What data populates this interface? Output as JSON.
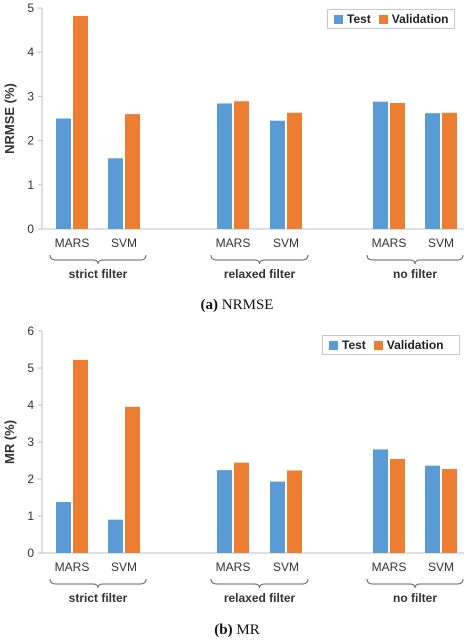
{
  "colors": {
    "test": "#5b9bd5",
    "validation": "#ed7d31"
  },
  "charts": [
    {
      "caption_prefix": "(a)",
      "caption_text": "NRMSE",
      "chart_data": {
        "type": "bar",
        "title": "",
        "xlabel": "",
        "ylabel": "NRMSE (%)",
        "ylim": [
          0,
          5
        ],
        "yticks": [
          "0",
          "1",
          "2",
          "3",
          "4",
          "5"
        ],
        "grid": false,
        "legend_placement": "top-right",
        "groups": [
          "strict filter",
          "relaxed filter",
          "no filter"
        ],
        "categories": [
          "MARS",
          "SVM",
          "MARS",
          "SVM",
          "MARS",
          "SVM"
        ],
        "series": [
          {
            "name": "Test",
            "values": [
              2.5,
              1.6,
              2.84,
              2.45,
              2.88,
              2.62
            ]
          },
          {
            "name": "Validation",
            "values": [
              4.82,
              2.6,
              2.89,
              2.63,
              2.85,
              2.63
            ]
          }
        ]
      }
    },
    {
      "caption_prefix": "(b)",
      "caption_text": "MR",
      "chart_data": {
        "type": "bar",
        "title": "",
        "xlabel": "",
        "ylabel": "MR (%)",
        "ylim": [
          0,
          6
        ],
        "yticks": [
          "0",
          "1",
          "2",
          "3",
          "4",
          "5",
          "6"
        ],
        "grid": false,
        "legend_placement": "top-right",
        "groups": [
          "strict filter",
          "relaxed filter",
          "no filter"
        ],
        "categories": [
          "MARS",
          "SVM",
          "MARS",
          "SVM",
          "MARS",
          "SVM"
        ],
        "series": [
          {
            "name": "Test",
            "values": [
              1.38,
              0.9,
              2.24,
              1.93,
              2.8,
              2.36
            ]
          },
          {
            "name": "Validation",
            "values": [
              5.22,
              3.95,
              2.44,
              2.23,
              2.54,
              2.27
            ]
          }
        ]
      }
    }
  ]
}
